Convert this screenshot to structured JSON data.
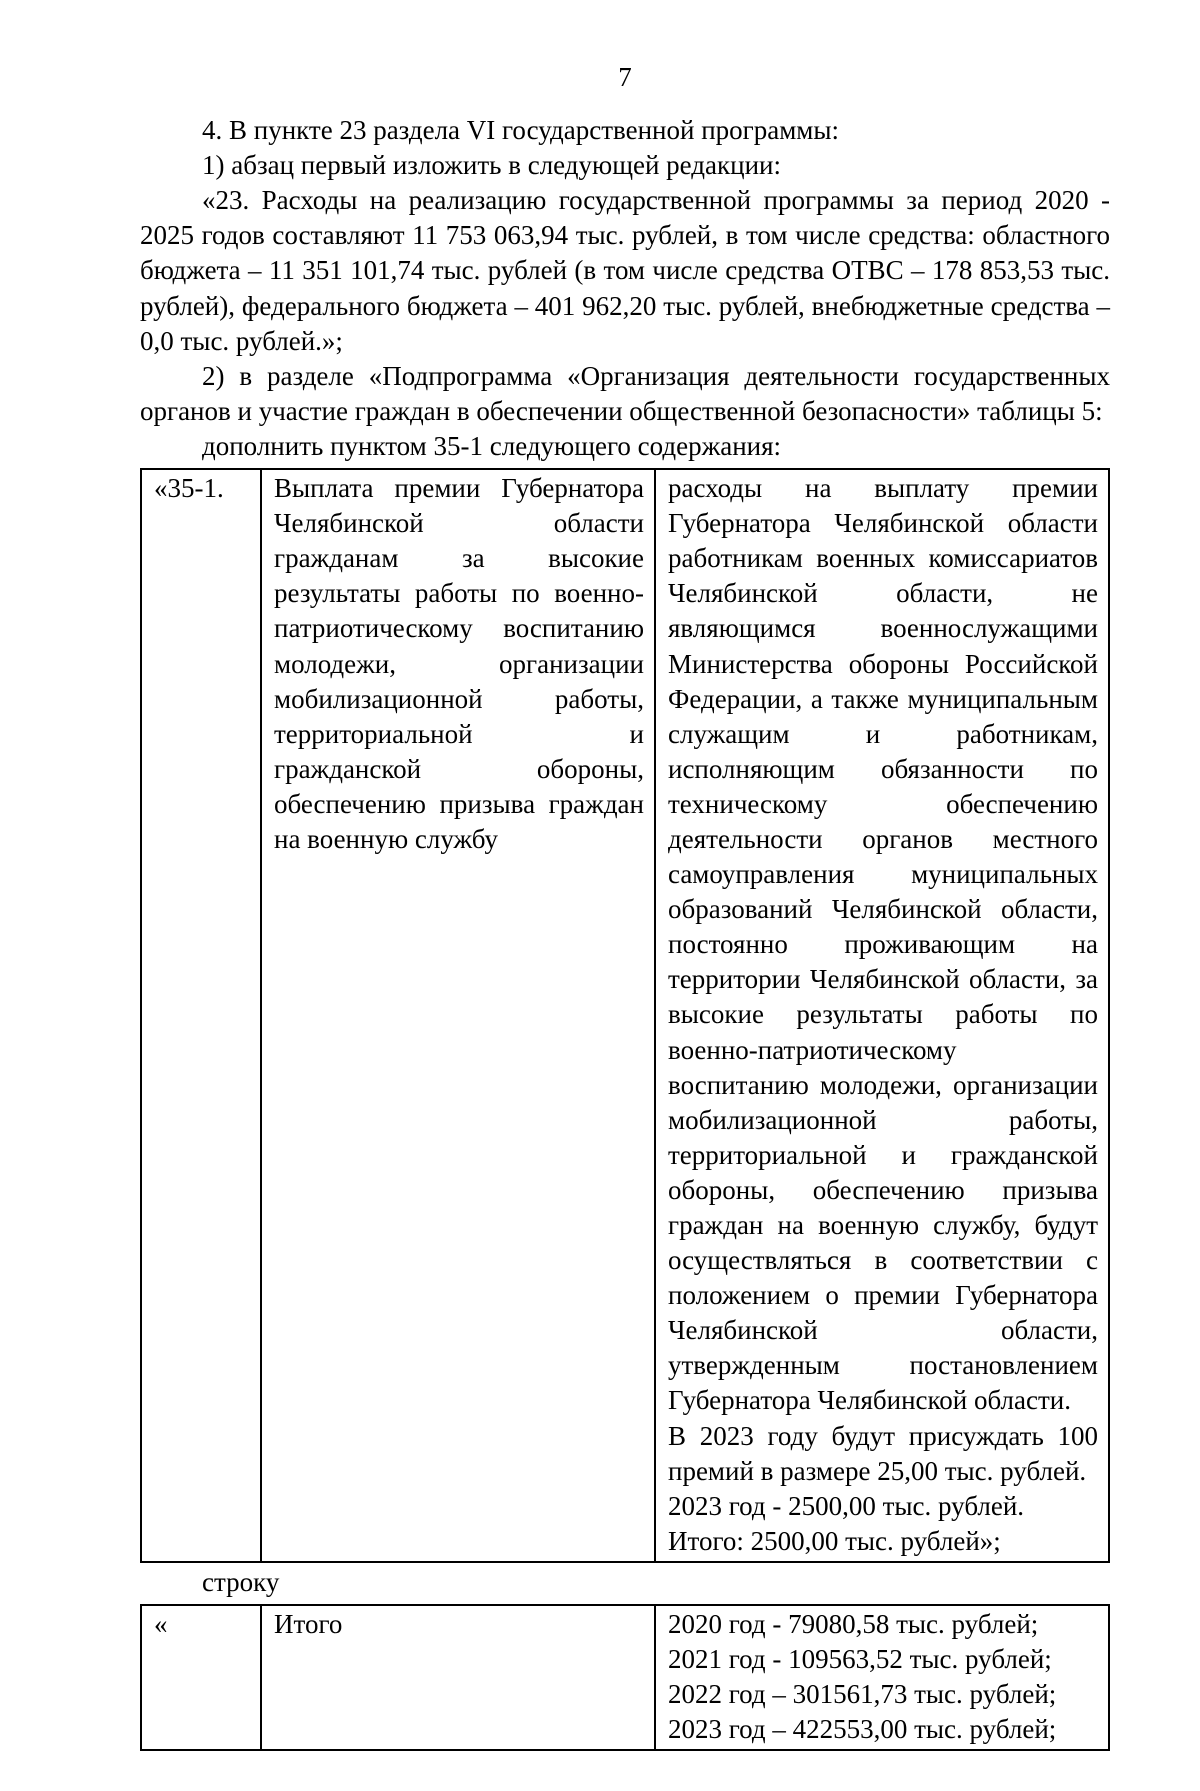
{
  "page": {
    "number": "7"
  },
  "body": {
    "p1": "4. В пункте 23 раздела VI государственной программы:",
    "p2": "1) абзац первый изложить в следующей редакции:",
    "p3": "«23. Расходы на реализацию государственной программы за период 2020 - 2025 годов составляют 11 753 063,94 тыс. рублей, в том числе средства: областного бюджета – 11 351 101,74 тыс. рублей (в том числе средства ОТВС – 178 853,53 тыс. рублей), федерального бюджета – 401 962,20 тыс. рублей, внебюджетные средства – 0,0 тыс. рублей.»;",
    "p4": "2) в разделе «Подпрограмма «Организация деятельности государственных органов и участие граждан в обеспечении общественной безопасности» таблицы 5:",
    "p5": "дополнить пунктом 35-1 следующего содержания:"
  },
  "table1": {
    "row": {
      "a": "«35-1.",
      "b": "Выплата премии Губернатора Челябинской области гражданам за высокие результаты работы по военно-патриотическому воспитанию молодежи, организации мобилизационной работы, территориальной и гражданской обороны, обеспечению призыва граждан на военную службу",
      "c": "расходы на выплату премии Губернатора Челябинской области работникам военных комиссариатов Челябинской области, не являющимся военнослужащими Министерства обороны Российской Федерации, а также муниципальным служащим и работникам, исполняющим обязанности по техническому обеспечению деятельности органов местного самоуправления муниципальных образований Челябинской области, постоянно проживающим на территории Челябинской области, за высокие результаты работы по военно-патриотическому воспитанию молодежи, организации мобилизационной работы, территориальной и гражданской обороны, обеспечению призыва граждан на военную службу, будут осуществляться в соответствии с положением о премии Губернатора Челябинской области, утвержденным постановлением Губернатора Челябинской области.",
      "c2": "В 2023 году будут присуждать 100 премий в размере 25,00 тыс. рублей.",
      "c3": "2023 год - 2500,00 тыс. рублей.",
      "c4": "Итого: 2500,00 тыс. рублей»;"
    }
  },
  "between": {
    "p": "строку"
  },
  "table2": {
    "row": {
      "a": "«",
      "b": "Итого",
      "c1": "2020 год - 79080,58 тыс. рублей;",
      "c2": "2021 год - 109563,52 тыс. рублей;",
      "c3": "2022 год – 301561,73 тыс. рублей;",
      "c4": "2023 год – 422553,00 тыс. рублей;"
    }
  }
}
